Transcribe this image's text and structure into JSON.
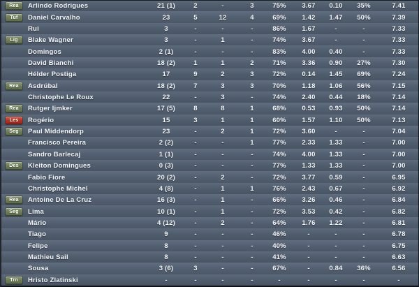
{
  "colors": {
    "row_background": "#4f5c6c",
    "text": "#f4f6f8",
    "badge_green": "#6b7a55",
    "badge_red": "#b72f20"
  },
  "table": {
    "rows": [
      {
        "badge": {
          "label": "Rea",
          "style": "green"
        },
        "name": "Arlindo Rodrigues",
        "stats": [
          "21 (1)",
          "2",
          "-",
          "3",
          "75%",
          "3.67",
          "0.10",
          "35%",
          "7.41"
        ]
      },
      {
        "badge": {
          "label": "Tuf",
          "style": "green"
        },
        "name": "Daniel Carvalho",
        "stats": [
          "23",
          "5",
          "12",
          "4",
          "69%",
          "1.42",
          "1.47",
          "50%",
          "7.39"
        ]
      },
      {
        "badge": null,
        "name": "Rui",
        "stats": [
          "3",
          "-",
          "-",
          "-",
          "86%",
          "1.67",
          "-",
          "-",
          "7.33"
        ]
      },
      {
        "badge": {
          "label": "Lig",
          "style": "green"
        },
        "name": "Blake Wagner",
        "stats": [
          "3",
          "-",
          "1",
          "-",
          "74%",
          "3.67",
          "-",
          "-",
          "7.33"
        ]
      },
      {
        "badge": null,
        "name": "Domingos",
        "stats": [
          "2 (1)",
          "-",
          "-",
          "-",
          "83%",
          "4.00",
          "0.40",
          "-",
          "7.33"
        ]
      },
      {
        "badge": null,
        "name": "David Bianchi",
        "stats": [
          "18 (2)",
          "1",
          "1",
          "2",
          "71%",
          "3.36",
          "0.90",
          "27%",
          "7.30"
        ]
      },
      {
        "badge": null,
        "name": "Hélder Postiga",
        "stats": [
          "17",
          "9",
          "2",
          "3",
          "72%",
          "0.14",
          "1.45",
          "69%",
          "7.24"
        ]
      },
      {
        "badge": {
          "label": "Rea",
          "style": "green"
        },
        "name": "Asdrúbal",
        "stats": [
          "18 (2)",
          "7",
          "3",
          "3",
          "70%",
          "1.18",
          "1.06",
          "56%",
          "7.15"
        ]
      },
      {
        "badge": null,
        "name": "Christophe Le Roux",
        "stats": [
          "22",
          "-",
          "3",
          "-",
          "74%",
          "2.40",
          "0.44",
          "18%",
          "7.14"
        ]
      },
      {
        "badge": {
          "label": "Rea",
          "style": "green"
        },
        "name": "Rutger Ijmker",
        "stats": [
          "17 (5)",
          "8",
          "8",
          "1",
          "68%",
          "0.53",
          "0.93",
          "50%",
          "7.14"
        ]
      },
      {
        "badge": {
          "label": "Les",
          "style": "red"
        },
        "name": "Rogério",
        "stats": [
          "15",
          "3",
          "1",
          "1",
          "60%",
          "1.57",
          "1.10",
          "50%",
          "7.13"
        ]
      },
      {
        "badge": {
          "label": "Seg",
          "style": "green"
        },
        "name": "Paul Middendorp",
        "stats": [
          "23",
          "-",
          "2",
          "1",
          "72%",
          "3.60",
          "-",
          "-",
          "7.04"
        ]
      },
      {
        "badge": null,
        "name": "Francisco Pereira",
        "stats": [
          "2 (2)",
          "-",
          "-",
          "1",
          "77%",
          "2.33",
          "1.33",
          "-",
          "7.00"
        ]
      },
      {
        "badge": null,
        "name": "Sandro Barlecaj",
        "stats": [
          "1 (1)",
          "-",
          "-",
          "-",
          "74%",
          "4.00",
          "1.33",
          "-",
          "7.00"
        ]
      },
      {
        "badge": {
          "label": "Des",
          "style": "green"
        },
        "name": "Kleiton Domingues",
        "stats": [
          "0 (3)",
          "-",
          "-",
          "-",
          "77%",
          "1.33",
          "1.33",
          "-",
          "7.00"
        ]
      },
      {
        "badge": null,
        "name": "Fabio Fiore",
        "stats": [
          "20 (2)",
          "-",
          "2",
          "-",
          "72%",
          "3.77",
          "0.59",
          "-",
          "6.95"
        ]
      },
      {
        "badge": null,
        "name": "Christophe Michel",
        "stats": [
          "4 (8)",
          "-",
          "1",
          "1",
          "76%",
          "2.43",
          "0.67",
          "-",
          "6.92"
        ]
      },
      {
        "badge": {
          "label": "Rea",
          "style": "green"
        },
        "name": "Antoine De La Cruz",
        "stats": [
          "16 (3)",
          "-",
          "1",
          "-",
          "66%",
          "3.26",
          "0.46",
          "-",
          "6.84"
        ]
      },
      {
        "badge": {
          "label": "Seg",
          "style": "green"
        },
        "name": "Lima",
        "stats": [
          "10 (1)",
          "-",
          "1",
          "-",
          "72%",
          "3.53",
          "0.42",
          "-",
          "6.82"
        ]
      },
      {
        "badge": null,
        "name": "Mário",
        "stats": [
          "4 (12)",
          "-",
          "2",
          "-",
          "64%",
          "1.76",
          "1.22",
          "-",
          "6.81"
        ]
      },
      {
        "badge": null,
        "name": "Tiago",
        "stats": [
          "9",
          "-",
          "-",
          "-",
          "46%",
          "-",
          "-",
          "-",
          "6.78"
        ]
      },
      {
        "badge": null,
        "name": "Felipe",
        "stats": [
          "8",
          "-",
          "-",
          "-",
          "40%",
          "-",
          "-",
          "-",
          "6.75"
        ]
      },
      {
        "badge": null,
        "name": "Mathieu Sail",
        "stats": [
          "8",
          "-",
          "-",
          "-",
          "41%",
          "-",
          "-",
          "-",
          "6.63"
        ]
      },
      {
        "badge": null,
        "name": "Sousa",
        "stats": [
          "3 (6)",
          "3",
          "-",
          "-",
          "67%",
          "-",
          "0.84",
          "36%",
          "6.56"
        ]
      },
      {
        "badge": {
          "label": "Trn",
          "style": "green"
        },
        "name": "Hristo Zlatinski",
        "stats": [
          "-",
          "-",
          "-",
          "-",
          "-",
          "-",
          "-",
          "-",
          "-"
        ]
      }
    ]
  }
}
